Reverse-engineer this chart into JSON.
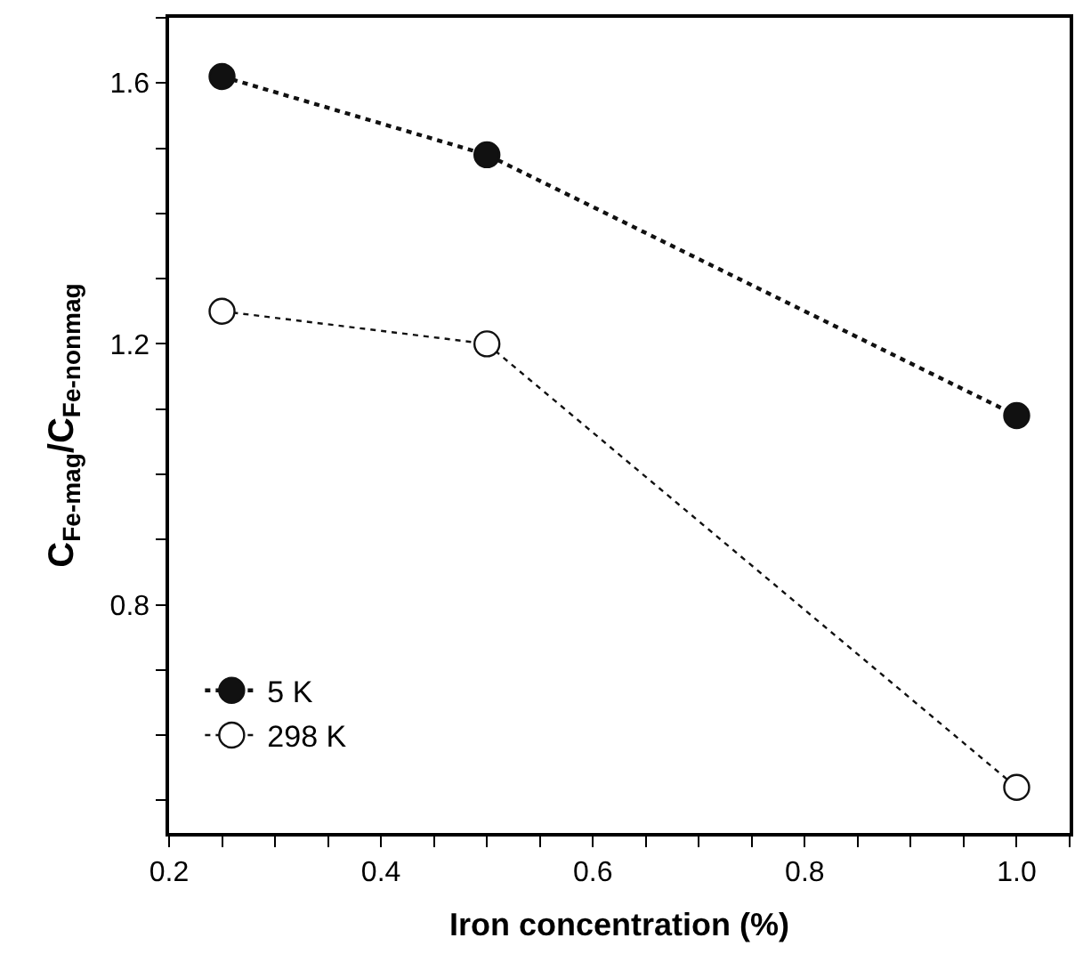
{
  "chart_data": {
    "type": "line",
    "xlabel": "Iron concentration (%)",
    "ylabel": "C$_{Fe-mag}$/C$_{Fe-nonmag}$",
    "x": [
      0.25,
      0.5,
      1.0
    ],
    "series": [
      {
        "name": "5 K",
        "color": "#111111",
        "values": [
          1.61,
          1.49,
          1.09
        ],
        "marker": "circle",
        "line_style": "dotted"
      },
      {
        "name": "298 K",
        "color": "#111111",
        "values": [
          1.25,
          1.2,
          0.52
        ],
        "marker": "circle",
        "line_style": "dotted"
      }
    ],
    "xlim": [
      0.2,
      1.05
    ],
    "ylim": [
      0.45,
      1.7
    ],
    "xticks": [
      0.2,
      {
        "value": 0.25,
        "label": null
      },
      {
        "value": 0.3,
        "label": null
      },
      {
        "value": 0.35,
        "label": null
      },
      0.4,
      {
        "value": 0.45,
        "label": null
      },
      {
        "value": 0.5,
        "label": null
      },
      {
        "value": 0.55,
        "label": null
      },
      0.6,
      {
        "value": 0.65,
        "label": null
      },
      {
        "value": 0.7,
        "label": null
      },
      {
        "value": 0.75,
        "label": null
      },
      0.8,
      {
        "value": 0.85,
        "label": null
      },
      {
        "value": 0.9,
        "label": null
      },
      {
        "value": 0.95,
        "label": null
      },
      {
        "value": 1.0,
        "label": "1.0"
      },
      {
        "value": 1.05,
        "label": null
      }
    ],
    "yticks": [
      {
        "value": 0.5,
        "label": null
      },
      {
        "value": 0.6,
        "label": null
      },
      {
        "value": 0.7,
        "label": null
      },
      0.8,
      {
        "value": 0.9,
        "label": null
      },
      {
        "value": 1.0,
        "label": null
      },
      {
        "value": 1.1,
        "label": null
      },
      1.2,
      {
        "value": 1.3,
        "label": null
      },
      {
        "value": 1.4,
        "label": null
      },
      {
        "value": 1.5,
        "label": null
      },
      1.6,
      {
        "value": 1.7,
        "label": null
      }
    ],
    "legend": "bottom left"
  }
}
